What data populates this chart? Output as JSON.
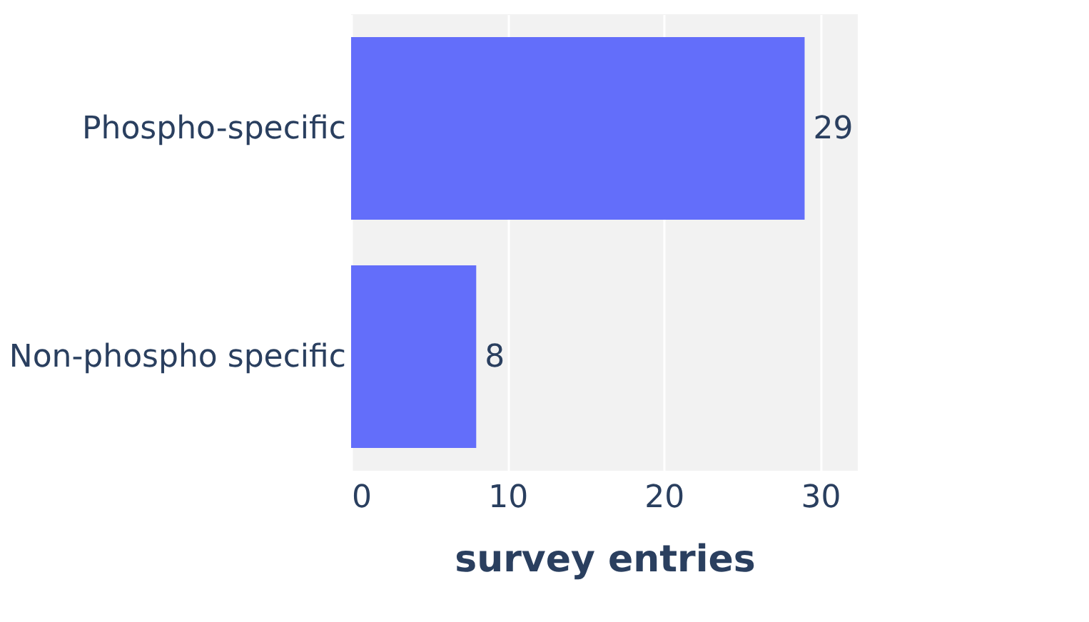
{
  "chart_data": {
    "type": "bar",
    "orientation": "horizontal",
    "xlabel": "survey entries",
    "categories": [
      "Phospho-specific",
      "Non-phospho specific"
    ],
    "values": [
      29,
      8
    ],
    "color": "#636efa",
    "xlim": [
      0,
      32.4
    ],
    "xticks": [
      0,
      10,
      20,
      30
    ],
    "grid": "x",
    "data_labels": true
  }
}
